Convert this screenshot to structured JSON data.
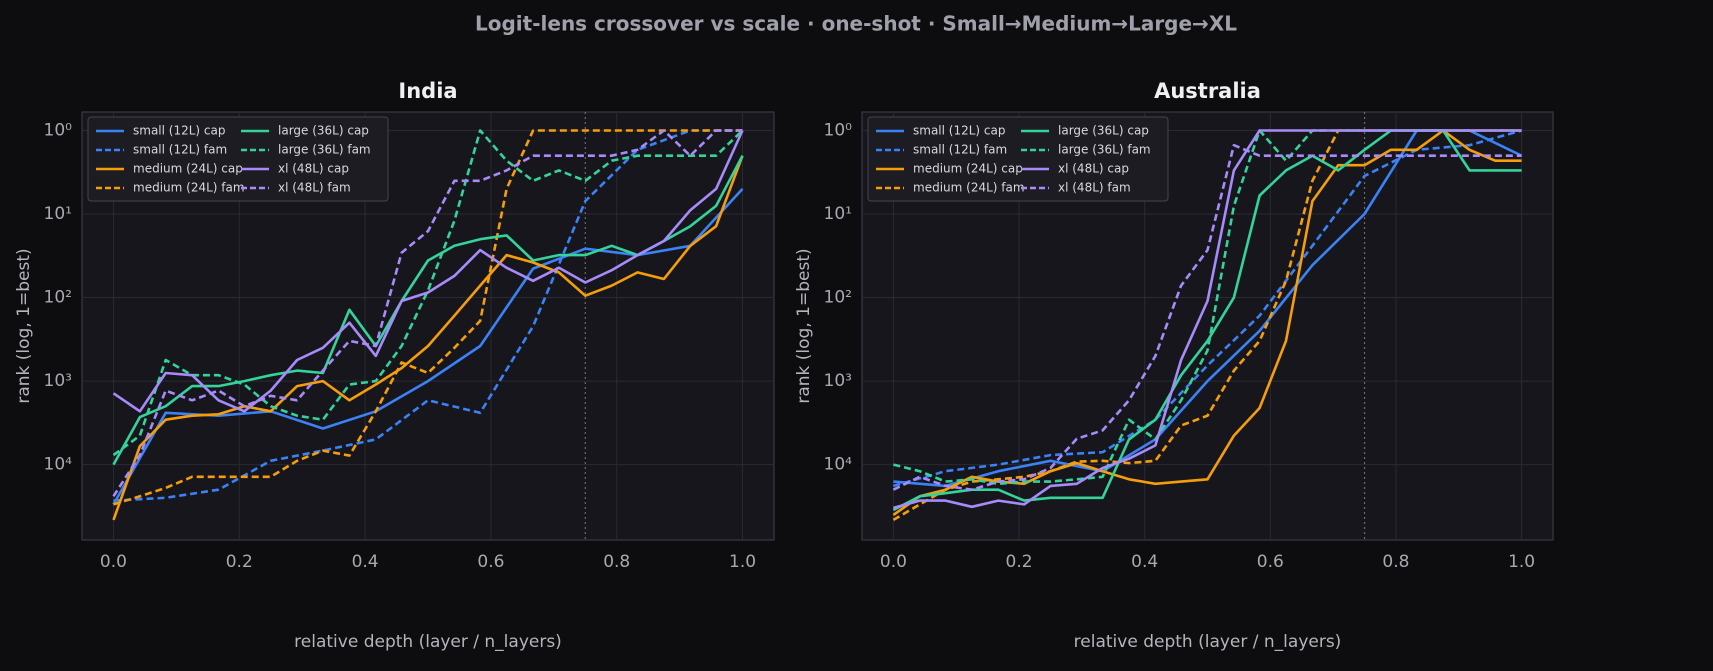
{
  "title": "Logit-lens crossover vs scale · one-shot · Small→Medium→Large→XL",
  "chart_data": [
    {
      "type": "line",
      "title": "India",
      "x_label": "relative depth (layer / n_layers)",
      "y_label": "rank (log, 1=best)",
      "xlim": [
        -0.05,
        1.05
      ],
      "xticks": [
        {
          "value": 0,
          "label": "0.0"
        },
        0.2,
        0.4,
        0.6,
        0.8,
        {
          "value": 1,
          "label": "1.0"
        }
      ],
      "ylim": [
        80000,
        0.6
      ],
      "yscale": "log",
      "yticks": [
        {
          "value": 1,
          "label": "10⁰"
        },
        {
          "value": 10,
          "label": "10¹"
        },
        {
          "value": 100,
          "label": "10²"
        },
        {
          "value": 1000,
          "label": "10³"
        },
        {
          "value": 10000,
          "label": "10⁴"
        }
      ],
      "grid": true,
      "vline": 0.75,
      "legend": "upper left",
      "legend_ncol": 2,
      "series": [
        {
          "name": "small (12L) cap",
          "color": "#3b82f6",
          "linestyle": "solid",
          "x": [
            0,
            0.083,
            0.167,
            0.25,
            0.333,
            0.417,
            0.5,
            0.583,
            0.667,
            0.75,
            0.833,
            0.917,
            1
          ],
          "values": [
            30000,
            2400,
            2600,
            2300,
            3700,
            2300,
            1000,
            380,
            45,
            26,
            31,
            24,
            5
          ]
        },
        {
          "name": "small (12L) fam",
          "color": "#3b82f6",
          "linestyle": "dashed",
          "x": [
            0,
            0.083,
            0.167,
            0.25,
            0.333,
            0.417,
            0.5,
            0.583,
            0.667,
            0.75,
            0.833,
            0.917,
            1
          ],
          "values": [
            27000,
            25000,
            20000,
            9000,
            6800,
            5000,
            1700,
            2400,
            220,
            7,
            1.7,
            1,
            1
          ]
        },
        {
          "name": "medium (24L) cap",
          "color": "#f59e0b",
          "linestyle": "solid",
          "x": [
            0,
            0.042,
            0.083,
            0.125,
            0.167,
            0.208,
            0.25,
            0.292,
            0.333,
            0.375,
            0.417,
            0.458,
            0.5,
            0.542,
            0.583,
            0.625,
            0.667,
            0.708,
            0.75,
            0.792,
            0.833,
            0.875,
            0.917,
            0.958,
            1
          ],
          "values": [
            46000,
            6000,
            2900,
            2600,
            2500,
            2000,
            2300,
            1150,
            1000,
            1700,
            1100,
            700,
            380,
            165,
            72,
            31,
            38,
            50,
            95,
            72,
            50,
            60,
            24,
            14,
            2
          ]
        },
        {
          "name": "medium (24L) fam",
          "color": "#f59e0b",
          "linestyle": "dashed",
          "x": [
            0,
            0.042,
            0.083,
            0.125,
            0.167,
            0.208,
            0.25,
            0.292,
            0.333,
            0.375,
            0.417,
            0.458,
            0.5,
            0.542,
            0.583,
            0.625,
            0.667,
            0.708,
            0.75,
            0.792,
            0.833,
            0.875,
            0.917,
            0.958,
            1
          ],
          "values": [
            30000,
            24000,
            19000,
            14000,
            14000,
            14000,
            14000,
            9000,
            6800,
            7800,
            2300,
            600,
            800,
            400,
            190,
            5,
            1,
            1,
            1,
            1,
            1,
            1,
            1,
            1,
            1
          ]
        },
        {
          "name": "large (36L) cap",
          "color": "#34d399",
          "linestyle": "solid",
          "x": [
            0,
            0.042,
            0.083,
            0.125,
            0.167,
            0.208,
            0.25,
            0.292,
            0.333,
            0.375,
            0.417,
            0.458,
            0.5,
            0.542,
            0.583,
            0.625,
            0.667,
            0.708,
            0.75,
            0.792,
            0.833,
            0.875,
            0.917,
            0.958,
            1
          ],
          "values": [
            10000,
            2700,
            2000,
            1150,
            1150,
            1000,
            850,
            750,
            800,
            140,
            380,
            110,
            36,
            24,
            20,
            18,
            36,
            31,
            31,
            24,
            31,
            21,
            14,
            8,
            2
          ]
        },
        {
          "name": "large (36L) fam",
          "color": "#34d399",
          "linestyle": "dashed",
          "x": [
            0,
            0.042,
            0.083,
            0.125,
            0.167,
            0.208,
            0.25,
            0.292,
            0.333,
            0.375,
            0.417,
            0.458,
            0.5,
            0.542,
            0.583,
            0.625,
            0.667,
            0.708,
            0.75,
            0.792,
            0.833,
            0.875,
            0.917,
            0.958,
            1
          ],
          "values": [
            7700,
            4500,
            560,
            850,
            850,
            1100,
            2000,
            2600,
            2900,
            1100,
            1000,
            380,
            82,
            12,
            1,
            2.3,
            4,
            3,
            4,
            2.3,
            2,
            2,
            2,
            2,
            1
          ]
        },
        {
          "name": "xl (48L) cap",
          "color": "#a78bfa",
          "linestyle": "solid",
          "x": [
            0,
            0.042,
            0.083,
            0.125,
            0.167,
            0.208,
            0.25,
            0.292,
            0.333,
            0.375,
            0.417,
            0.458,
            0.5,
            0.542,
            0.583,
            0.625,
            0.667,
            0.708,
            0.75,
            0.792,
            0.833,
            0.875,
            0.917,
            0.958,
            1
          ],
          "values": [
            1400,
            2300,
            800,
            850,
            1700,
            2300,
            1300,
            560,
            400,
            200,
            500,
            110,
            87,
            55,
            27,
            44,
            63,
            44,
            66,
            47,
            31,
            21,
            9,
            5,
            1
          ]
        },
        {
          "name": "xl (48L) fam",
          "color": "#a78bfa",
          "linestyle": "dashed",
          "x": [
            0,
            0.042,
            0.083,
            0.125,
            0.167,
            0.208,
            0.25,
            0.292,
            0.333,
            0.375,
            0.417,
            0.458,
            0.5,
            0.542,
            0.583,
            0.625,
            0.667,
            0.708,
            0.75,
            0.792,
            0.833,
            0.875,
            0.917,
            0.958,
            1
          ],
          "values": [
            24000,
            7700,
            1300,
            1700,
            1300,
            2000,
            1500,
            1700,
            750,
            330,
            380,
            29,
            16,
            4,
            4,
            3,
            2,
            2,
            2,
            2,
            1.7,
            1,
            2,
            1,
            1
          ]
        }
      ]
    },
    {
      "type": "line",
      "title": "Australia",
      "x_label": "relative depth (layer / n_layers)",
      "y_label": "rank (log, 1=best)",
      "xlim": [
        -0.05,
        1.05
      ],
      "xticks": [
        {
          "value": 0,
          "label": "0.0"
        },
        0.2,
        0.4,
        0.6,
        0.8,
        {
          "value": 1,
          "label": "1.0"
        }
      ],
      "ylim": [
        80000,
        0.6
      ],
      "yscale": "log",
      "yticks": [
        {
          "value": 1,
          "label": "10⁰"
        },
        {
          "value": 10,
          "label": "10¹"
        },
        {
          "value": 100,
          "label": "10²"
        },
        {
          "value": 1000,
          "label": "10³"
        },
        {
          "value": 10000,
          "label": "10⁴"
        }
      ],
      "grid": true,
      "vline": 0.75,
      "legend": "upper left",
      "legend_ncol": 2,
      "series": [
        {
          "name": "small (12L) cap",
          "color": "#3b82f6",
          "linestyle": "solid",
          "x": [
            0,
            0.083,
            0.167,
            0.25,
            0.333,
            0.417,
            0.5,
            0.583,
            0.667,
            0.75,
            0.833,
            0.917,
            1
          ],
          "values": [
            16000,
            18000,
            12000,
            9000,
            12000,
            5000,
            1000,
            250,
            41,
            10,
            1,
            1,
            2
          ]
        },
        {
          "name": "small (12L) fam",
          "color": "#3b82f6",
          "linestyle": "dashed",
          "x": [
            0,
            0.083,
            0.167,
            0.25,
            0.333,
            0.417,
            0.5,
            0.583,
            0.667,
            0.75,
            0.833,
            0.917,
            1
          ],
          "values": [
            18000,
            12000,
            10000,
            7700,
            7100,
            2900,
            650,
            165,
            24,
            3.5,
            1.7,
            1.5,
            1
          ]
        },
        {
          "name": "medium (24L) cap",
          "color": "#f59e0b",
          "linestyle": "solid",
          "x": [
            0,
            0.042,
            0.083,
            0.125,
            0.167,
            0.208,
            0.25,
            0.292,
            0.333,
            0.375,
            0.417,
            0.458,
            0.5,
            0.542,
            0.583,
            0.625,
            0.667,
            0.708,
            0.75,
            0.792,
            0.833,
            0.875,
            0.917,
            0.958,
            1
          ],
          "values": [
            40000,
            24000,
            20000,
            14000,
            16000,
            17000,
            12000,
            9600,
            12000,
            15000,
            17000,
            16000,
            15000,
            4500,
            2100,
            330,
            7,
            2.6,
            2.6,
            1.7,
            1.7,
            1,
            1.7,
            2.3,
            2.3
          ]
        },
        {
          "name": "medium (24L) fam",
          "color": "#f59e0b",
          "linestyle": "dashed",
          "x": [
            0,
            0.042,
            0.083,
            0.125,
            0.167,
            0.208,
            0.25,
            0.292,
            0.333,
            0.375,
            0.417,
            0.458,
            0.5,
            0.542,
            0.583,
            0.625,
            0.667,
            0.708,
            0.75,
            0.792,
            0.833,
            0.875,
            0.917,
            0.958,
            1
          ],
          "values": [
            46000,
            30000,
            20000,
            16000,
            15000,
            14000,
            12000,
            9200,
            9000,
            9600,
            9000,
            3400,
            2600,
            750,
            330,
            63,
            4,
            1,
            1,
            1,
            1,
            1,
            1,
            1,
            1
          ]
        },
        {
          "name": "large (36L) cap",
          "color": "#34d399",
          "linestyle": "solid",
          "x": [
            0,
            0.042,
            0.083,
            0.125,
            0.167,
            0.208,
            0.25,
            0.292,
            0.333,
            0.375,
            0.417,
            0.458,
            0.5,
            0.542,
            0.583,
            0.625,
            0.667,
            0.708,
            0.75,
            0.792,
            0.833,
            0.875,
            0.917,
            0.958,
            1
          ],
          "values": [
            35000,
            24000,
            22000,
            20000,
            20000,
            27000,
            25000,
            25000,
            25000,
            5000,
            2900,
            850,
            330,
            100,
            6,
            3,
            2,
            3,
            1.7,
            1,
            1,
            1,
            3,
            3,
            3
          ]
        },
        {
          "name": "large (36L) fam",
          "color": "#34d399",
          "linestyle": "dashed",
          "x": [
            0,
            0.042,
            0.083,
            0.125,
            0.167,
            0.208,
            0.25,
            0.292,
            0.333,
            0.375,
            0.417,
            0.458,
            0.5,
            0.542,
            0.583,
            0.625,
            0.667,
            0.708,
            0.75,
            0.792,
            0.833,
            0.875,
            0.917,
            0.958,
            1
          ],
          "values": [
            10000,
            12000,
            16000,
            15000,
            17000,
            16000,
            16000,
            15000,
            14000,
            2900,
            5000,
            1700,
            430,
            8,
            1,
            2.3,
            1,
            1,
            1,
            1,
            1,
            1,
            1,
            1,
            1
          ]
        },
        {
          "name": "xl (48L) cap",
          "color": "#a78bfa",
          "linestyle": "solid",
          "x": [
            0,
            0.042,
            0.083,
            0.125,
            0.167,
            0.208,
            0.25,
            0.292,
            0.333,
            0.375,
            0.417,
            0.458,
            0.5,
            0.542,
            0.583,
            0.625,
            0.667,
            0.708,
            0.75,
            0.792,
            0.833,
            0.875,
            0.917,
            0.958,
            1
          ],
          "values": [
            33000,
            27000,
            27000,
            32000,
            27000,
            30000,
            18000,
            17000,
            11000,
            8500,
            5900,
            560,
            110,
            3,
            1,
            1,
            1,
            1,
            1,
            1,
            1,
            1,
            1,
            1,
            1
          ]
        },
        {
          "name": "xl (48L) fam",
          "color": "#a78bfa",
          "linestyle": "dashed",
          "x": [
            0,
            0.042,
            0.083,
            0.125,
            0.167,
            0.208,
            0.25,
            0.292,
            0.333,
            0.375,
            0.417,
            0.458,
            0.5,
            0.542,
            0.583,
            0.625,
            0.667,
            0.708,
            0.75,
            0.792,
            0.833,
            0.875,
            0.917,
            0.958,
            1
          ],
          "values": [
            20000,
            14000,
            18000,
            20000,
            16000,
            15000,
            11000,
            4900,
            3900,
            1700,
            500,
            72,
            27,
            1.5,
            2,
            2,
            2,
            2,
            2,
            2,
            2,
            2,
            2,
            2,
            2
          ]
        }
      ]
    }
  ]
}
